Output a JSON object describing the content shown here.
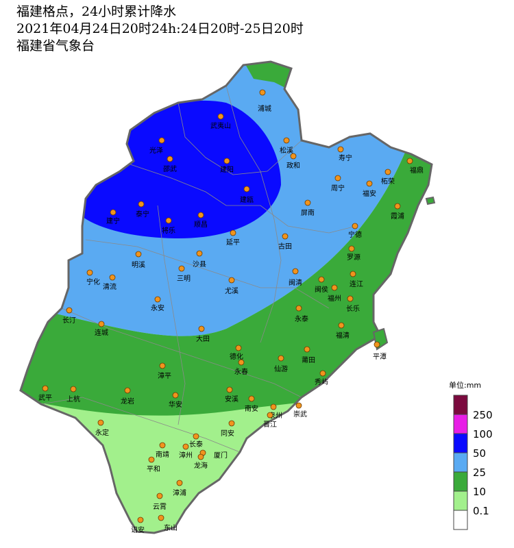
{
  "header": {
    "lines": [
      "福建格点，24小时累计降水",
      "2021年04月24日20时24h:24日20时-25日20时",
      "福建省气象台"
    ]
  },
  "legend": {
    "title": "单位:mm",
    "levels": [
      {
        "label": "250",
        "color": "#7b0a3e"
      },
      {
        "label": "100",
        "color": "#e81ee6"
      },
      {
        "label": "50",
        "color": "#0a0aff"
      },
      {
        "label": "25",
        "color": "#5aaaf2"
      },
      {
        "label": "10",
        "color": "#3aaa3a"
      },
      {
        "label": "0.1",
        "color": "#a2f08c"
      }
    ]
  },
  "cities": [
    "武夷山",
    "浦城",
    "光泽",
    "邵武",
    "松溪",
    "政和",
    "建阳",
    "寿宁",
    "福鼎",
    "柘荣",
    "周宁",
    "福安",
    "建瓯",
    "泰宁",
    "建宁",
    "顺昌",
    "将乐",
    "屏南",
    "霞浦",
    "宁德",
    "延平",
    "古田",
    "明溪",
    "沙县",
    "罗源",
    "三明",
    "宁化",
    "清流",
    "尤溪",
    "闽清",
    "闽侯",
    "连江",
    "福州",
    "永安",
    "长乐",
    "长汀",
    "永泰",
    "连城",
    "福清",
    "大田",
    "平潭",
    "德化",
    "莆田",
    "仙游",
    "永春",
    "漳平",
    "秀屿",
    "武平",
    "上杭",
    "龙岩",
    "安溪",
    "华安",
    "南安",
    "泉州",
    "崇武",
    "永定",
    "晋江",
    "同安",
    "长泰",
    "南靖",
    "漳州",
    "厦门",
    "龙海",
    "平和",
    "漳浦",
    "云霄",
    "诏安",
    "东山"
  ]
}
